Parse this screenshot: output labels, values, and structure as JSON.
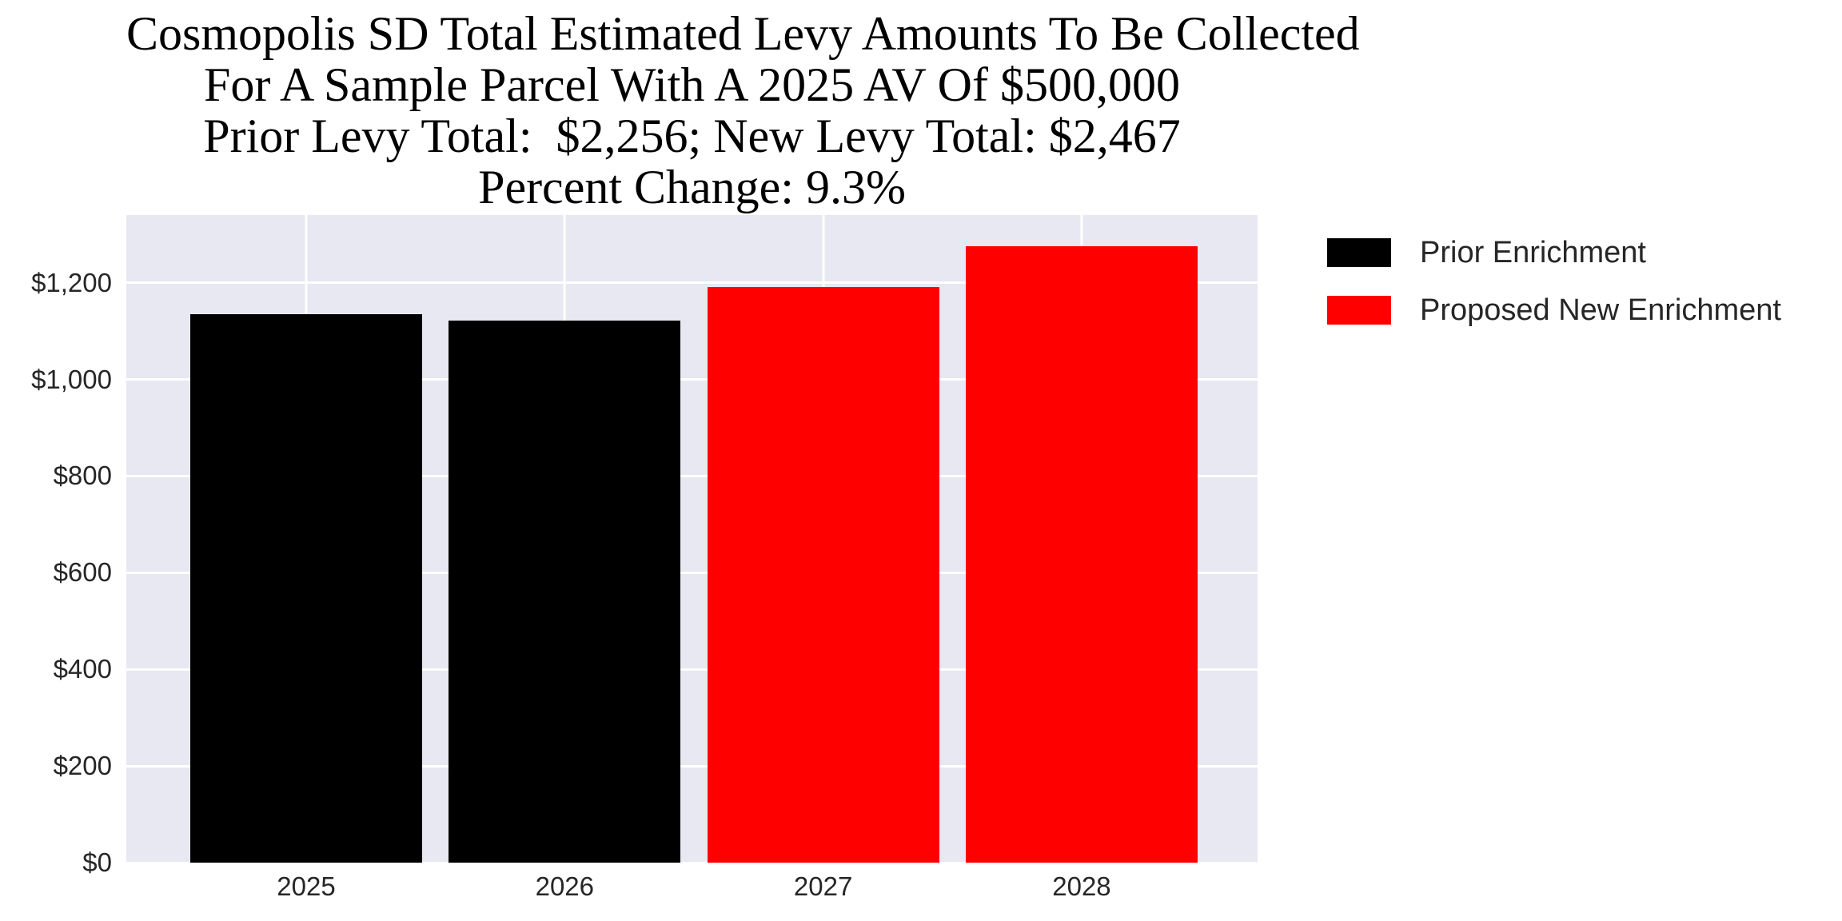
{
  "title": {
    "lines": [
      "Cosmopolis SD Total Estimated Levy Amounts To Be Collected",
      "For A Sample Parcel With A 2025 AV Of $500,000",
      "Prior Levy Total:  $2,256; New Levy Total: $2,467",
      "Percent Change: 9.3%"
    ]
  },
  "legend": {
    "items": [
      {
        "label": "Prior Enrichment",
        "color": "#000000"
      },
      {
        "label": "Proposed New Enrichment",
        "color": "#ff0000"
      }
    ]
  },
  "chart_data": {
    "type": "bar",
    "title": "Cosmopolis SD Total Estimated Levy Amounts To Be Collected\nFor A Sample Parcel With A 2025 AV Of $500,000\nPrior Levy Total:  $2,256; New Levy Total: $2,467\nPercent Change: 9.3%",
    "categories": [
      "2025",
      "2026",
      "2027",
      "2028"
    ],
    "series": [
      {
        "name": "Prior Enrichment",
        "color": "#000000",
        "values": [
          1135,
          1121,
          null,
          null
        ]
      },
      {
        "name": "Proposed New Enrichment",
        "color": "#ff0000",
        "values": [
          null,
          null,
          1191,
          1276
        ]
      }
    ],
    "bars": [
      {
        "category": "2025",
        "series": "Prior Enrichment",
        "value": 1135,
        "color": "#000000"
      },
      {
        "category": "2026",
        "series": "Prior Enrichment",
        "value": 1121,
        "color": "#000000"
      },
      {
        "category": "2027",
        "series": "Proposed New Enrichment",
        "value": 1191,
        "color": "#ff0000"
      },
      {
        "category": "2028",
        "series": "Proposed New Enrichment",
        "value": 1276,
        "color": "#ff0000"
      }
    ],
    "prior_levy_total": 2256,
    "new_levy_total": 2467,
    "percent_change": 9.3,
    "sample_parcel_av": 500000,
    "xlabel": "",
    "ylabel": "",
    "ylim": [
      0,
      1340
    ],
    "yticks": [
      {
        "value": 0,
        "label": "$0"
      },
      {
        "value": 200,
        "label": "$200"
      },
      {
        "value": 400,
        "label": "$400"
      },
      {
        "value": 600,
        "label": "$600"
      },
      {
        "value": 800,
        "label": "$800"
      },
      {
        "value": 1000,
        "label": "$1,000"
      },
      {
        "value": 1200,
        "label": "$1,200"
      }
    ],
    "grid": true,
    "grid_color": "#ffffff",
    "plot_background": "#e8e8f2",
    "tick_color": "#262626",
    "legend_position": "outside upper right"
  }
}
